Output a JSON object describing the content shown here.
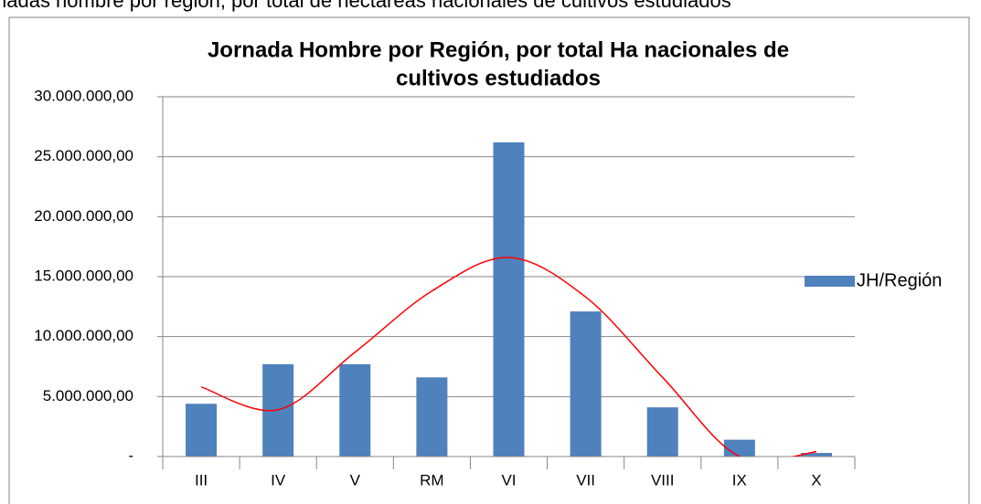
{
  "caption": "nadas hombre por región, por total de hectáreas nacionales de cultivos estudiados",
  "chart_data": {
    "type": "bar",
    "title": [
      "Jornada Hombre por Región, por total Ha nacionales de",
      "cultivos estudiados"
    ],
    "categories": [
      "III",
      "IV",
      "V",
      "RM",
      "VI",
      "VII",
      "VIII",
      "IX",
      "X"
    ],
    "series": [
      {
        "name": "JH/Región",
        "color": "#4f81bd",
        "values": [
          4400000,
          7700000,
          7700000,
          6600000,
          26200000,
          12100000,
          4100000,
          1400000,
          300000
        ]
      }
    ],
    "trendline": {
      "color": "#ff0000",
      "values": [
        5800000,
        3900000,
        8700000,
        13800000,
        16600000,
        13300000,
        6600000,
        0,
        400000
      ]
    },
    "ylim": [
      0,
      30000000
    ],
    "yticks": [
      {
        "value": 0,
        "label": "-"
      },
      {
        "value": 5000000,
        "label": "5.000.000,00"
      },
      {
        "value": 10000000,
        "label": "10.000.000,00"
      },
      {
        "value": 15000000,
        "label": "15.000.000,00"
      },
      {
        "value": 20000000,
        "label": "20.000.000,00"
      },
      {
        "value": 25000000,
        "label": "25.000.000,00"
      },
      {
        "value": 30000000,
        "label": "30.000.000,00"
      }
    ],
    "grid": true,
    "legend": "right"
  }
}
